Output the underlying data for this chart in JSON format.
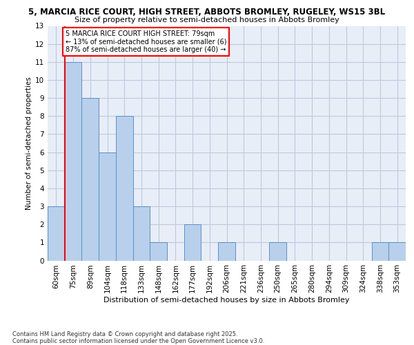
{
  "title_line1": "5, MARCIA RICE COURT, HIGH STREET, ABBOTS BROMLEY, RUGELEY, WS15 3BL",
  "title_line2": "Size of property relative to semi-detached houses in Abbots Bromley",
  "xlabel": "Distribution of semi-detached houses by size in Abbots Bromley",
  "ylabel": "Number of semi-detached properties",
  "categories": [
    "60sqm",
    "75sqm",
    "89sqm",
    "104sqm",
    "118sqm",
    "133sqm",
    "148sqm",
    "162sqm",
    "177sqm",
    "192sqm",
    "206sqm",
    "221sqm",
    "236sqm",
    "250sqm",
    "265sqm",
    "280sqm",
    "294sqm",
    "309sqm",
    "324sqm",
    "338sqm",
    "353sqm"
  ],
  "values": [
    3,
    11,
    9,
    6,
    8,
    3,
    1,
    0,
    2,
    0,
    1,
    0,
    0,
    1,
    0,
    0,
    0,
    0,
    0,
    1,
    1
  ],
  "bar_color": "#b8d0eb",
  "bar_edge_color": "#5b8fc9",
  "red_line_x": 0.5,
  "annotation_text": "5 MARCIA RICE COURT HIGH STREET: 79sqm\n← 13% of semi-detached houses are smaller (6)\n87% of semi-detached houses are larger (40) →",
  "ylim_max": 13,
  "yticks": [
    0,
    1,
    2,
    3,
    4,
    5,
    6,
    7,
    8,
    9,
    10,
    11,
    12,
    13
  ],
  "footer": "Contains HM Land Registry data © Crown copyright and database right 2025.\nContains public sector information licensed under the Open Government Licence v3.0.",
  "bg_color": "#e8eef8",
  "grid_color": "#c0c8da",
  "title1_fontsize": 8.5,
  "title2_fontsize": 8.0,
  "ylabel_fontsize": 7.5,
  "xlabel_fontsize": 8.0,
  "tick_fontsize": 7.5,
  "annot_fontsize": 7.0,
  "footer_fontsize": 6.0
}
